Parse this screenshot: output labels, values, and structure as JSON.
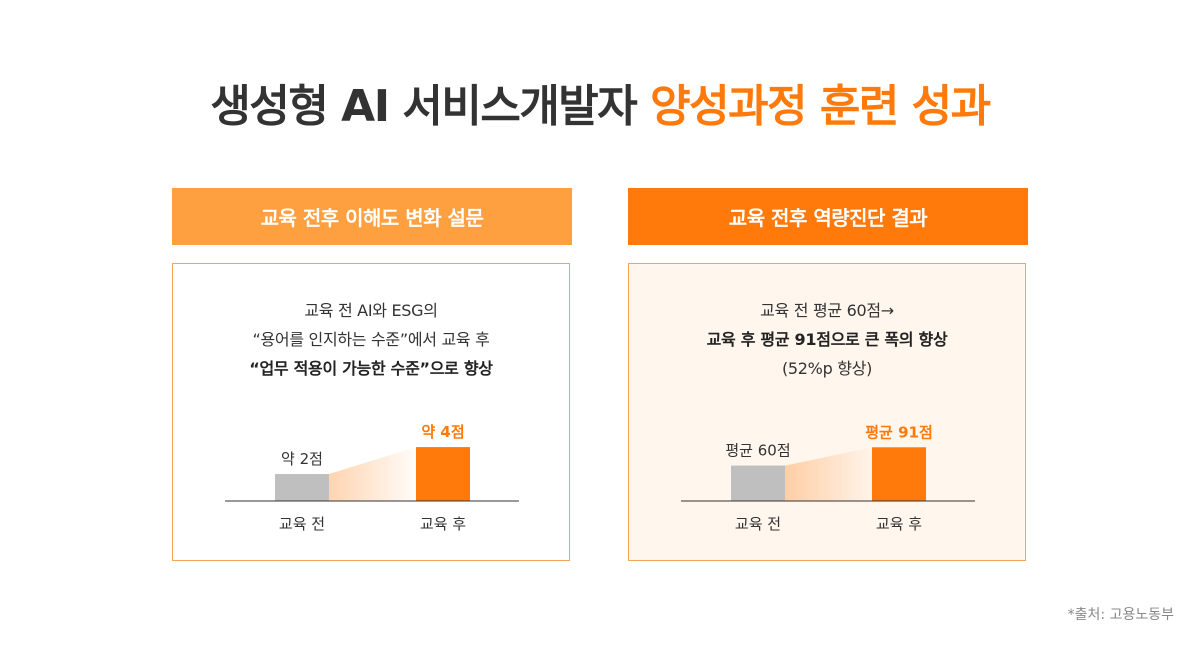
{
  "title": {
    "main": "생성형 AI 서비스개발자",
    "highlight": "양성과정 훈련 성과"
  },
  "colors": {
    "accent": "#ff7a0b",
    "before_bar": "#bfbfbf",
    "panel1_header": "#ffa040",
    "panel2_header": "#ff7a0b"
  },
  "panels": [
    {
      "header": "교육 전후 이해도 변화 설문",
      "desc": {
        "line1": "교육 전 AI와 ESG의",
        "line2": "“용어를 인지하는 수준”에서 교육 후",
        "line3": "“업무 적용이 가능한 수준”으로 향상"
      }
    },
    {
      "header": "교육 전후 역량진단 결과",
      "desc": {
        "line1": "교육 전 평균 60점→",
        "line2": "교육 후 평균 91점으로 큰 폭의 향상",
        "line3": "(52%p 향상)"
      }
    }
  ],
  "source": "*출처: 고용노동부",
  "chart_data": [
    {
      "type": "bar",
      "categories": [
        "교육 전",
        "교육 후"
      ],
      "values": [
        2,
        4
      ],
      "value_labels": [
        "약 2점",
        "약 4점"
      ],
      "ylim": [
        0,
        4.6
      ]
    },
    {
      "type": "bar",
      "categories": [
        "교육 전",
        "교육 후"
      ],
      "values": [
        60,
        91
      ],
      "value_labels": [
        "평균 60점",
        "평균 91점"
      ],
      "ylim": [
        0,
        105
      ]
    }
  ]
}
